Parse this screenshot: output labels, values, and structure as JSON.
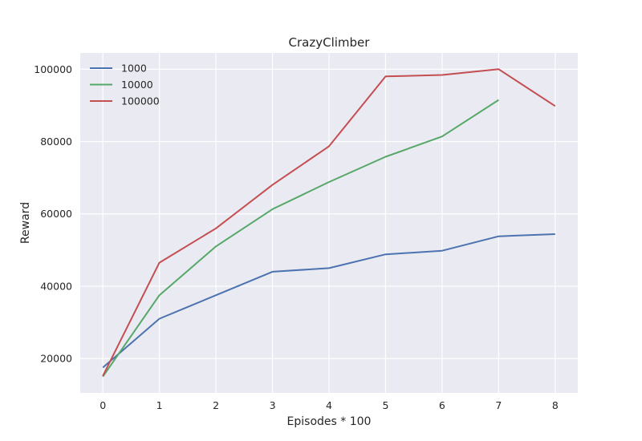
{
  "chart_data": {
    "type": "line",
    "title": "CrazyClimber",
    "xlabel": "Episodes * 100",
    "ylabel": "Reward",
    "xlim": [
      -0.4,
      8.4
    ],
    "ylim": [
      10500,
      104500
    ],
    "xticks": [
      0,
      1,
      2,
      3,
      4,
      5,
      6,
      7,
      8
    ],
    "yticks": [
      20000,
      40000,
      60000,
      80000,
      100000
    ],
    "grid": true,
    "legend_position": "top-left",
    "series": [
      {
        "name": "1000",
        "color": "#4c72b0",
        "x": [
          0,
          1,
          2,
          3,
          4,
          5,
          6,
          7,
          8
        ],
        "y": [
          17500,
          31000,
          37500,
          44000,
          45000,
          48800,
          49800,
          53800,
          54400
        ]
      },
      {
        "name": "10000",
        "color": "#55a868",
        "x": [
          0,
          1,
          2,
          3,
          4,
          5,
          6,
          7
        ],
        "y": [
          15000,
          37500,
          51000,
          61300,
          68800,
          75800,
          81400,
          91500
        ]
      },
      {
        "name": "100000",
        "color": "#c44e52",
        "x": [
          0,
          1,
          2,
          3,
          4,
          5,
          6,
          7,
          8
        ],
        "y": [
          15200,
          46500,
          56000,
          68000,
          78700,
          98000,
          98400,
          100000,
          89800
        ]
      }
    ]
  }
}
